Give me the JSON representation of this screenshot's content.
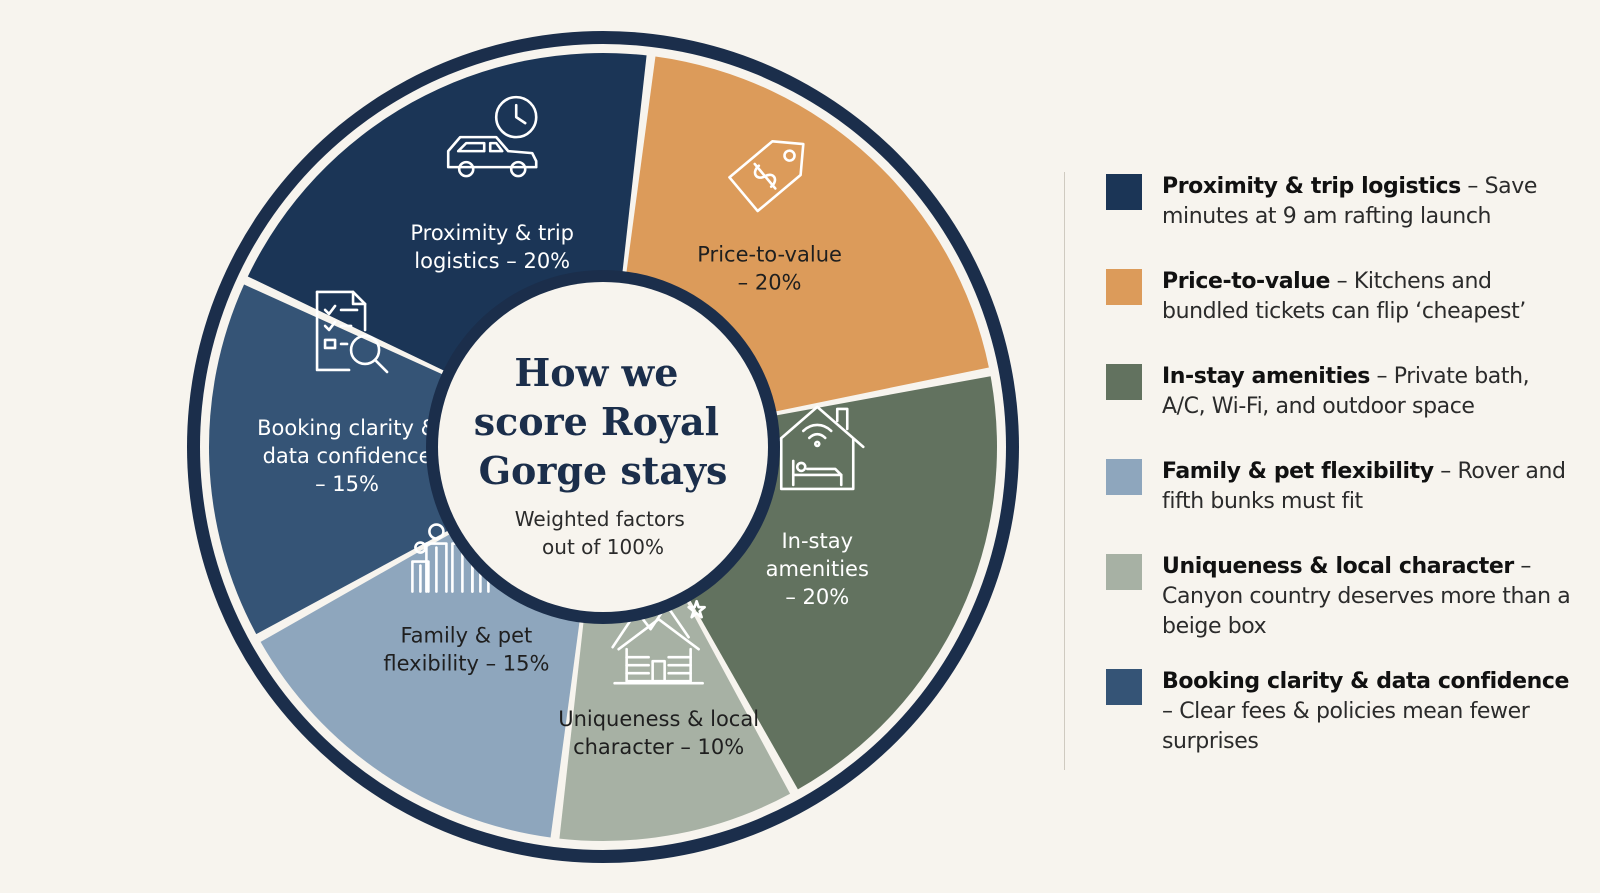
{
  "chart_data": {
    "type": "pie",
    "title": "How we score Royal Gorge stays",
    "subtitle": "Weighted factors out of 100%",
    "unit": "%",
    "slices": [
      {
        "key": "proximity",
        "label_lines": [
          "Proximity & trip",
          "logistics – 20%"
        ],
        "value": 20,
        "color": "#1b3556",
        "text_color": "#ffffff",
        "icon": "car-clock-icon"
      },
      {
        "key": "price",
        "label_lines": [
          "Price-to-value",
          "– 20%"
        ],
        "value": 20,
        "color": "#dc9b5a",
        "text_color": "#1f1f1f",
        "icon": "price-tag-icon"
      },
      {
        "key": "amenities",
        "label_lines": [
          "In-stay",
          "amenities",
          "– 20%"
        ],
        "value": 20,
        "color": "#62725f",
        "text_color": "#ffffff",
        "icon": "house-wifi-bed-icon"
      },
      {
        "key": "uniqueness",
        "label_lines": [
          "Uniqueness & local",
          "character – 10%"
        ],
        "value": 10,
        "color": "#a7b1a4",
        "text_color": "#1f1f1f",
        "icon": "cabin-mountain-icon"
      },
      {
        "key": "family",
        "label_lines": [
          "Family & pet",
          "flexibility – 15%"
        ],
        "value": 15,
        "color": "#8ea6bd",
        "text_color": "#1f1f1f",
        "icon": "family-paw-icon"
      },
      {
        "key": "booking",
        "label_lines": [
          "Booking clarity &",
          "data confidence",
          "– 15%"
        ],
        "value": 15,
        "color": "#355476",
        "text_color": "#ffffff",
        "icon": "document-search-icon"
      }
    ],
    "ring_color": "#1b2e4b",
    "legend_placement": "right"
  },
  "title_lines": [
    "How we",
    "score Royal",
    "Gorge stays"
  ],
  "subtitle_lines": [
    "Weighted factors",
    "out of 100%"
  ],
  "legend": [
    {
      "bold": "Proximity & trip logistics",
      "rest": " – Save minutes at 9 am rafting launch",
      "color": "#1b3556"
    },
    {
      "bold": "Price-to-value",
      "rest": " – Kitchens and bundled tickets can flip ‘cheapest’",
      "color": "#dc9b5a"
    },
    {
      "bold": "In-stay amenities",
      "rest": " – Private bath, A/C, Wi-Fi, and outdoor space",
      "color": "#62725f"
    },
    {
      "bold": "Family & pet flexibility",
      "rest": " – Rover and fifth bunks must fit",
      "color": "#8ea6bd"
    },
    {
      "bold": "Uniqueness & local character",
      "rest": " – Canyon country deserves more than a beige box",
      "color": "#a7b1a4"
    },
    {
      "bold": "Booking clarity & data confidence",
      "rest": " – Clear fees & policies mean fewer surprises",
      "color": "#355476"
    }
  ]
}
